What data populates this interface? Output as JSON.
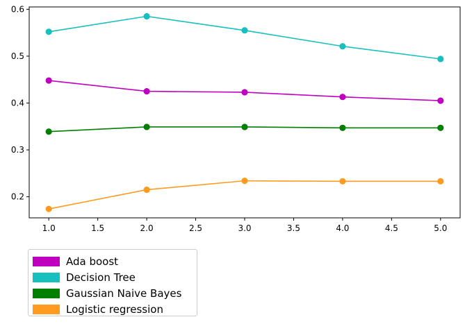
{
  "chart_data": {
    "type": "line",
    "title": "",
    "xlabel": "",
    "ylabel": "",
    "x": [
      1.0,
      2.0,
      3.0,
      4.0,
      5.0
    ],
    "xlim": [
      0.8,
      5.2
    ],
    "ylim": [
      0.155,
      0.605
    ],
    "x_ticks": [
      "1.0",
      "1.5",
      "2.0",
      "2.5",
      "3.0",
      "3.5",
      "4.0",
      "4.5",
      "5.0"
    ],
    "y_ticks": [
      "0.2",
      "0.3",
      "0.4",
      "0.5",
      "0.6"
    ],
    "grid": false,
    "legend_placement": "below-left",
    "series": [
      {
        "name": "Ada boost",
        "color": "#bf00bf",
        "values": [
          0.448,
          0.425,
          0.423,
          0.413,
          0.405
        ]
      },
      {
        "name": "Decision Tree",
        "color": "#17bfbf",
        "values": [
          0.552,
          0.585,
          0.555,
          0.521,
          0.494
        ]
      },
      {
        "name": "Gaussian Naive Bayes",
        "color": "#007f00",
        "values": [
          0.339,
          0.349,
          0.349,
          0.347,
          0.347
        ]
      },
      {
        "name": "Logistic regression",
        "color": "#ff9b1f",
        "values": [
          0.174,
          0.215,
          0.234,
          0.233,
          0.233
        ]
      }
    ]
  }
}
